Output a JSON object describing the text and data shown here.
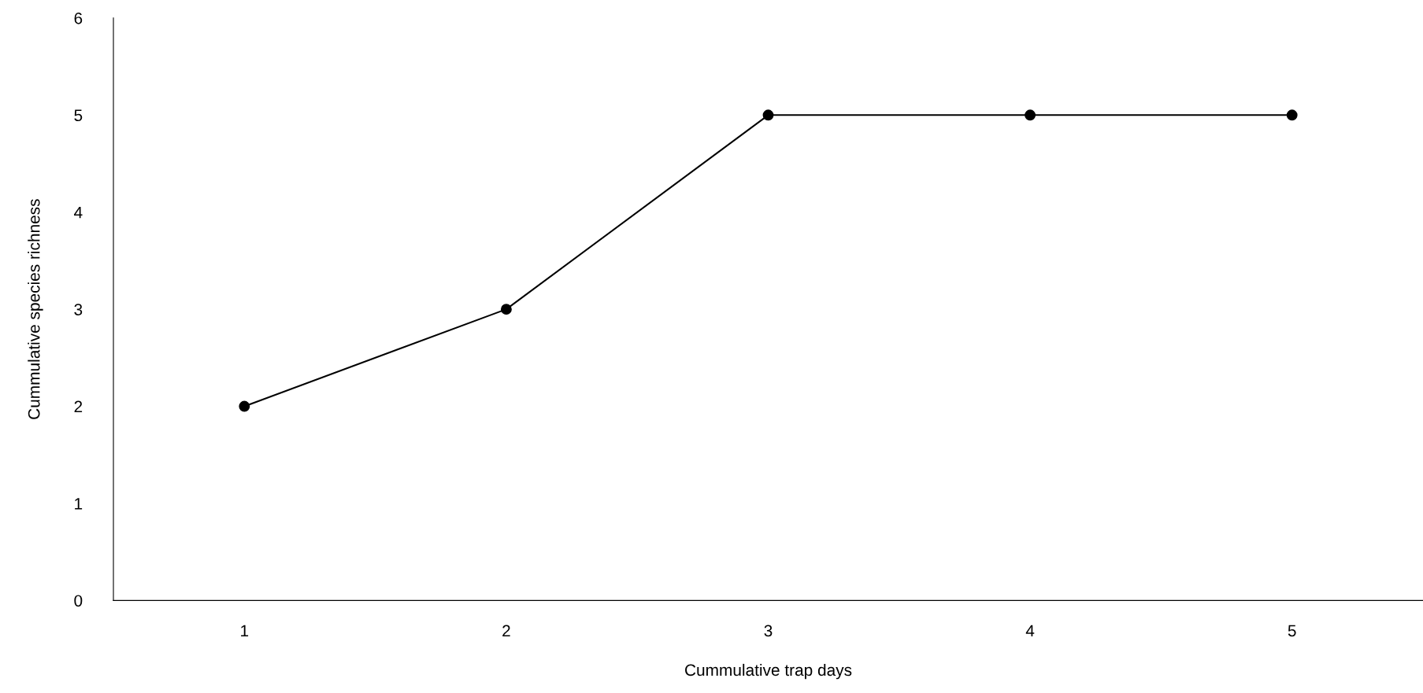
{
  "chart_data": {
    "type": "line",
    "xlabel": "Cummulative trap days",
    "ylabel": "Cummulative species richness",
    "categories": [
      "1",
      "2",
      "3",
      "4",
      "5"
    ],
    "series": [
      {
        "color": "#000000",
        "values": [
          2,
          3,
          5,
          5,
          5
        ]
      }
    ],
    "ylim": [
      0,
      6
    ],
    "yticks": [
      0,
      1,
      2,
      3,
      4,
      5,
      6
    ],
    "grid": false,
    "legend": false,
    "marker": "circle",
    "line_style": "solid"
  }
}
